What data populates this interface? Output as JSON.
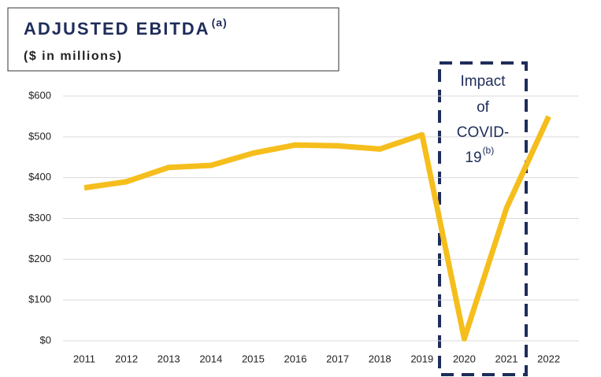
{
  "chart_data": {
    "type": "line",
    "title": "ADJUSTED EBITDA",
    "title_superscript": "(a)",
    "subtitle": "($ in millions)",
    "categories": [
      "2011",
      "2012",
      "2013",
      "2014",
      "2015",
      "2016",
      "2017",
      "2018",
      "2019",
      "2020",
      "2021",
      "2022"
    ],
    "values": [
      375,
      390,
      425,
      430,
      460,
      480,
      478,
      470,
      505,
      5,
      325,
      550
    ],
    "color": "#f5be1c",
    "ylim": [
      0,
      600
    ],
    "yticks": [
      {
        "value": 0,
        "label": "$0"
      },
      {
        "value": 100,
        "label": "$100"
      },
      {
        "value": 200,
        "label": "$200"
      },
      {
        "value": 300,
        "label": "$300"
      },
      {
        "value": 400,
        "label": "$400"
      },
      {
        "value": 500,
        "label": "$500"
      },
      {
        "value": 600,
        "label": "$600"
      }
    ],
    "grid": true,
    "annotation": {
      "lines": [
        "Impact",
        "of",
        "COVID-",
        "19"
      ],
      "superscript": "(b)"
    }
  }
}
